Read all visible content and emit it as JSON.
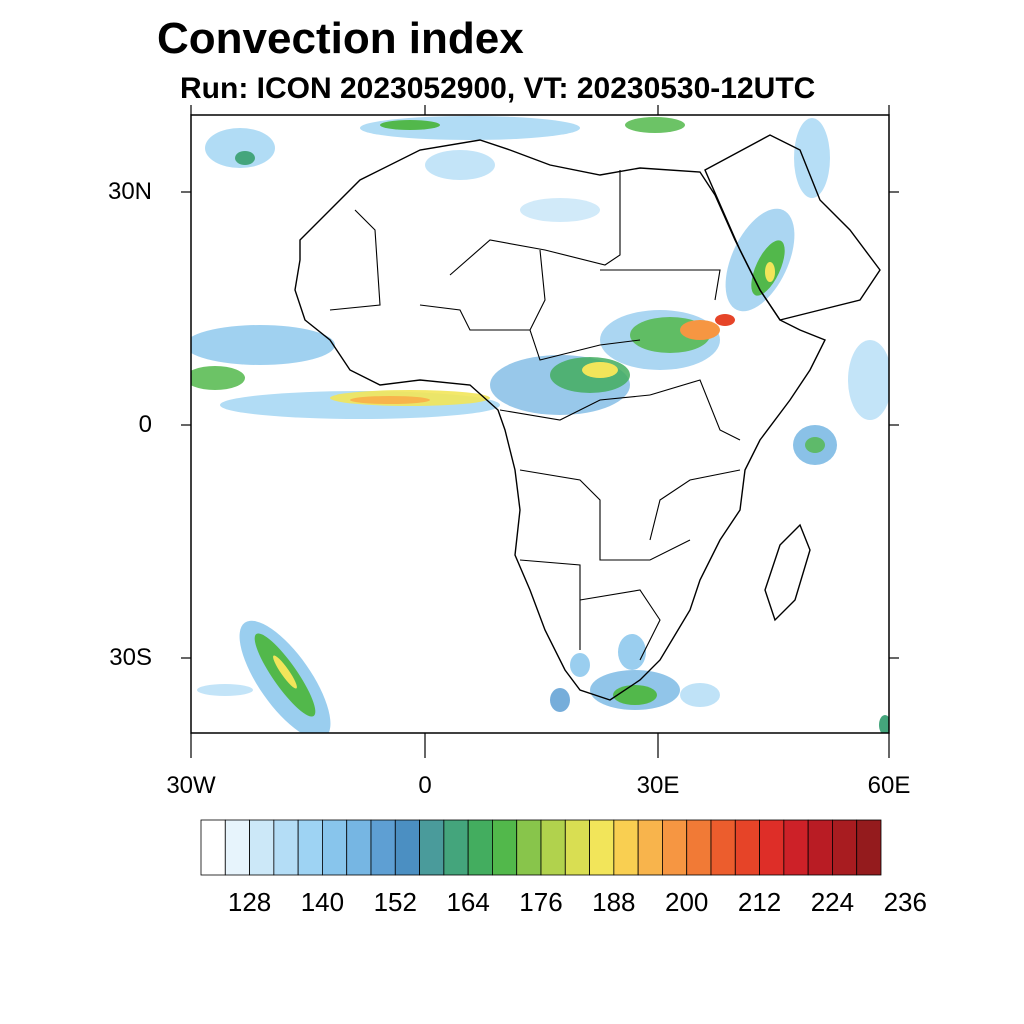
{
  "header": {
    "title": "Convection index",
    "subtitle": "Run: ICON 2023052900,  VT: 20230530-12UTC"
  },
  "axes": {
    "lat_labels": [
      "30N",
      "0",
      "30S"
    ],
    "lon_labels": [
      "30W",
      "0",
      "30E",
      "60E"
    ]
  },
  "colorbar": {
    "labels": [
      "128",
      "140",
      "152",
      "164",
      "176",
      "188",
      "200",
      "212",
      "224",
      "236"
    ],
    "colors": [
      "#ffffff",
      "#e7f4fc",
      "#cce8f8",
      "#b4ddf6",
      "#9ed3f3",
      "#88c5ec",
      "#76b6e3",
      "#5e9fd3",
      "#4b8fc2",
      "#4a9b9b",
      "#44a57c",
      "#43ad5f",
      "#52b84b",
      "#88c54b",
      "#b1d24d",
      "#d9de52",
      "#f2e55a",
      "#f9cf51",
      "#f8b44c",
      "#f69642",
      "#f17a36",
      "#ec5d2d",
      "#e64428",
      "#de2e28",
      "#cd2128",
      "#b91c24",
      "#a81c20",
      "#941b1d"
    ]
  }
}
